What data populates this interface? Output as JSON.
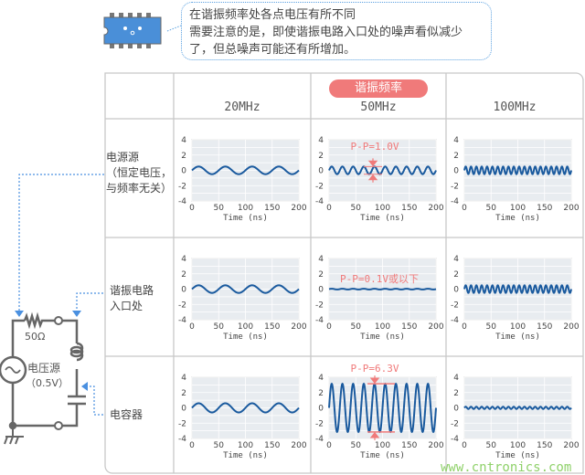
{
  "callout": {
    "lines": [
      "在谐振频率处各点电压有所不同",
      "需要注意的是，即使谐振电路入口处的噪声看似减少",
      "了，但总噪声可能还有所增加。"
    ]
  },
  "header": {
    "badge": "谐振频率",
    "columns": [
      "20MHz",
      "50MHz",
      "100MHz"
    ]
  },
  "rows": [
    {
      "lines": [
        "电源源",
        "（恒定电压，",
        "与频率无关）"
      ]
    },
    {
      "lines": [
        "谐振电路",
        "入口处"
      ]
    },
    {
      "lines": [
        "电容器"
      ]
    }
  ],
  "circuit": {
    "resistor": "50Ω",
    "source_lines": [
      "电压源",
      "（0.5V）"
    ]
  },
  "annotations": {
    "r1": "P-P=1.0V",
    "r2": "P-P=0.1V或以下",
    "r3": "P-P=6.3V"
  },
  "colors": {
    "wave": "#1a5a9e",
    "annotation": "#f07a7a",
    "accent": "#4a90e0",
    "plot_bg": "#e8ecf0"
  },
  "watermark": "www.cntronics.com",
  "chart_data": [
    {
      "type": "line",
      "row": 0,
      "col": 0,
      "freq_mhz": 20,
      "amplitude": 0.5,
      "xlabel": "Time (ns)",
      "xlim": [
        0,
        200
      ],
      "ylim": [
        -4,
        4
      ],
      "xticks": [
        0,
        50,
        100,
        150,
        200
      ],
      "yticks": [
        4,
        2,
        0,
        -2,
        -4
      ],
      "grid": true
    },
    {
      "type": "line",
      "row": 0,
      "col": 1,
      "freq_mhz": 50,
      "amplitude": 0.5,
      "xlabel": "Time (ns)",
      "xlim": [
        0,
        200
      ],
      "ylim": [
        -4,
        4
      ],
      "xticks": [
        0,
        50,
        100,
        150,
        200
      ],
      "yticks": [
        4,
        2,
        0,
        -2,
        -4
      ],
      "grid": true
    },
    {
      "type": "line",
      "row": 0,
      "col": 2,
      "freq_mhz": 100,
      "amplitude": 0.5,
      "xlabel": "Time (ns)",
      "xlim": [
        0,
        200
      ],
      "ylim": [
        -4,
        4
      ],
      "xticks": [
        0,
        50,
        100,
        150,
        200
      ],
      "yticks": [
        4,
        2,
        0,
        -2,
        -4
      ],
      "grid": true
    },
    {
      "type": "line",
      "row": 1,
      "col": 0,
      "freq_mhz": 20,
      "amplitude": 0.5,
      "xlabel": "Time (ns)",
      "xlim": [
        0,
        200
      ],
      "ylim": [
        -4,
        4
      ],
      "xticks": [
        0,
        50,
        100,
        150,
        200
      ],
      "yticks": [
        4,
        2,
        0,
        -2,
        -4
      ],
      "grid": true
    },
    {
      "type": "line",
      "row": 1,
      "col": 1,
      "freq_mhz": 50,
      "amplitude": 0.05,
      "xlabel": "Time (ns)",
      "xlim": [
        0,
        200
      ],
      "ylim": [
        -4,
        4
      ],
      "xticks": [
        0,
        50,
        100,
        150,
        200
      ],
      "yticks": [
        4,
        2,
        0,
        -2,
        -4
      ],
      "grid": true
    },
    {
      "type": "line",
      "row": 1,
      "col": 2,
      "freq_mhz": 100,
      "amplitude": 0.5,
      "xlabel": "Time (ns)",
      "xlim": [
        0,
        200
      ],
      "ylim": [
        -4,
        4
      ],
      "xticks": [
        0,
        50,
        100,
        150,
        200
      ],
      "yticks": [
        4,
        2,
        0,
        -2,
        -4
      ],
      "grid": true
    },
    {
      "type": "line",
      "row": 2,
      "col": 0,
      "freq_mhz": 20,
      "amplitude": 0.6,
      "xlabel": "Time (ns)",
      "xlim": [
        0,
        200
      ],
      "ylim": [
        -4,
        4
      ],
      "xticks": [
        0,
        50,
        100,
        150,
        200
      ],
      "yticks": [
        4,
        2,
        0,
        -2,
        -4
      ],
      "grid": true
    },
    {
      "type": "line",
      "row": 2,
      "col": 1,
      "freq_mhz": 50,
      "amplitude": 3.15,
      "xlabel": "Time (ns)",
      "xlim": [
        0,
        200
      ],
      "ylim": [
        -4,
        4
      ],
      "xticks": [
        0,
        50,
        100,
        150,
        200
      ],
      "yticks": [
        4,
        2,
        0,
        -2,
        -4
      ],
      "grid": true
    },
    {
      "type": "line",
      "row": 2,
      "col": 2,
      "freq_mhz": 100,
      "amplitude": 0.15,
      "xlabel": "Time (ns)",
      "xlim": [
        0,
        200
      ],
      "ylim": [
        -4,
        4
      ],
      "xticks": [
        0,
        50,
        100,
        150,
        200
      ],
      "yticks": [
        4,
        2,
        0,
        -2,
        -4
      ],
      "grid": true
    }
  ]
}
